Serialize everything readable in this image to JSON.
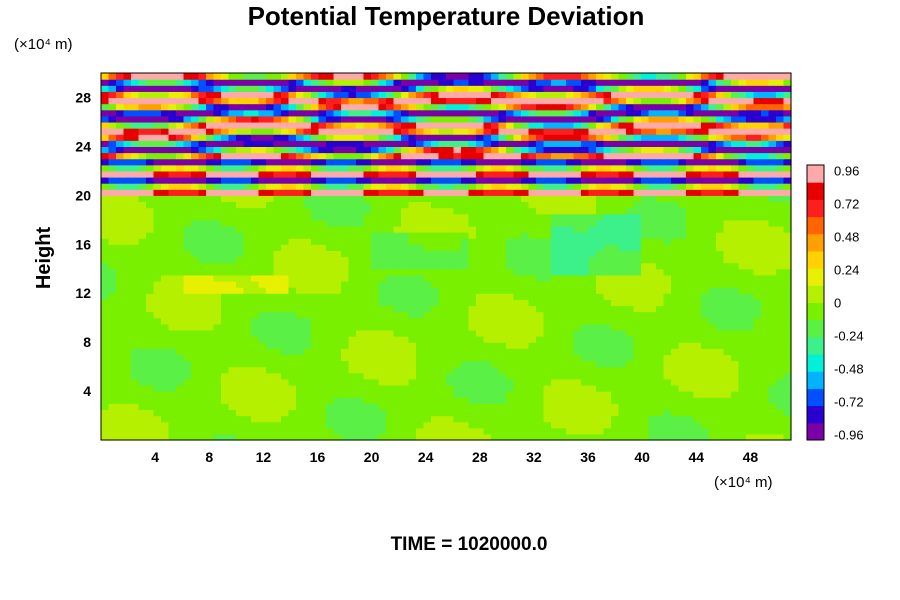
{
  "chart_data": {
    "type": "heatmap",
    "title": "Potential Temperature Deviation",
    "ylabel": "Height",
    "xlabel": "",
    "x_unit": "(×10⁴ m)",
    "y_unit": "(×10⁴ m)",
    "xlim": [
      0,
      51
    ],
    "ylim": [
      0,
      30
    ],
    "x_ticks": [
      4,
      8,
      12,
      16,
      20,
      24,
      28,
      32,
      36,
      40,
      44,
      48
    ],
    "y_ticks": [
      4,
      8,
      12,
      16,
      20,
      24,
      28
    ],
    "colorbar": {
      "range": [
        -1.0,
        1.0
      ],
      "tick_values": [
        0.96,
        0.72,
        0.48,
        0.24,
        0,
        -0.24,
        -0.48,
        -0.72,
        -0.96
      ],
      "tick_labels": [
        "0.96",
        "0.72",
        "0.48",
        "0.24",
        "0",
        "-0.24",
        "-0.48",
        "-0.72",
        "-0.96"
      ],
      "colors": [
        "#7a00a8",
        "#2a00d0",
        "#0050ff",
        "#00b4ff",
        "#00f0d8",
        "#3cf08a",
        "#5af046",
        "#78f000",
        "#b4f000",
        "#e6f000",
        "#ffd200",
        "#ffa000",
        "#ff6400",
        "#ff1e1e",
        "#e60000",
        "#ffaaaa"
      ]
    },
    "fields": {
      "lower_layer_top": 20,
      "lower_layer_value": -0.05,
      "upper_layer_range": [
        20,
        30
      ],
      "upper_layer_amplitude": 1.0
    },
    "footer": "TIME = 1020000.0"
  }
}
